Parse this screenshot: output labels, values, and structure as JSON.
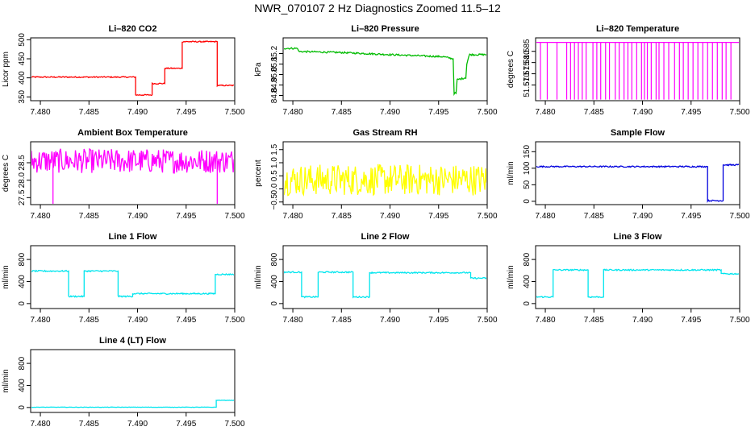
{
  "title": "NWR_070107  2 Hz Diagnostics Zoomed 11.5–12",
  "chart_data": [
    {
      "type": "line",
      "title": "Li–820 CO2",
      "xlabel": "",
      "ylabel": "Licor ppm",
      "color": "#ff0000",
      "xlim": [
        7.479,
        7.5
      ],
      "ylim": [
        340,
        505
      ],
      "x_ticks": [
        7.48,
        7.485,
        7.49,
        7.495,
        7.5
      ],
      "x_tick_labels": [
        "7.480",
        "7.485",
        "7.490",
        "7.495",
        "7.500"
      ],
      "y_ticks": [
        350,
        400,
        450,
        500
      ],
      "y_tick_labels": [
        "350",
        "400",
        "450",
        "500"
      ],
      "series": [
        {
          "x": [
            7.479,
            7.4898,
            7.4898,
            7.4915,
            7.4915,
            7.4928,
            7.4928,
            7.4946,
            7.4946,
            7.4982,
            7.4982,
            7.5
          ],
          "y": [
            402,
            402,
            355,
            355,
            385,
            385,
            425,
            425,
            495,
            495,
            380,
            380
          ],
          "noise": 1.5
        }
      ]
    },
    {
      "type": "line",
      "title": "Li–820 Pressure",
      "xlabel": "",
      "ylabel": "kPa",
      "color": "#00bb00",
      "xlim": [
        7.479,
        7.5
      ],
      "ylim": [
        84.75,
        85.35
      ],
      "x_ticks": [
        7.48,
        7.485,
        7.49,
        7.495,
        7.5
      ],
      "x_tick_labels": [
        "7.480",
        "7.485",
        "7.490",
        "7.495",
        "7.500"
      ],
      "y_ticks": [
        84.8,
        84.9,
        85.0,
        85.1,
        85.2
      ],
      "y_tick_labels": [
        "84.8",
        "84.9",
        "85.0",
        "85.1",
        "85.2"
      ],
      "series": [
        {
          "x": [
            7.479,
            7.4805,
            7.4806,
            7.485,
            7.49,
            7.4955,
            7.4965,
            7.4966,
            7.4968,
            7.4969,
            7.4978,
            7.4979,
            7.4981,
            7.4982,
            7.5
          ],
          "y": [
            85.25,
            85.25,
            85.22,
            85.21,
            85.19,
            85.17,
            85.15,
            84.82,
            84.82,
            84.95,
            84.97,
            85.1,
            85.17,
            85.19,
            85.19
          ],
          "noise": 0.008
        }
      ]
    },
    {
      "type": "line",
      "title": "Li–820 Temperature",
      "xlabel": "",
      "ylabel": "degrees C",
      "color": "#ff00ff",
      "xlim": [
        7.479,
        7.5
      ],
      "ylim": [
        51.563,
        51.591
      ],
      "x_ticks": [
        7.48,
        7.485,
        7.49,
        7.495,
        7.5
      ],
      "x_tick_labels": [
        "7.480",
        "7.485",
        "7.490",
        "7.495",
        "7.500"
      ],
      "y_ticks": [
        51.57,
        51.575,
        51.58,
        51.585
      ],
      "y_tick_labels": [
        "51.570",
        "51.575",
        "51.580",
        "51.585"
      ],
      "series": [
        {
          "x": [
            7.479,
            7.5
          ],
          "y": [
            51.589,
            51.589
          ],
          "drops": [
            7.4795,
            7.4802,
            7.4812,
            7.4822,
            7.4826,
            7.483,
            7.4834,
            7.4838,
            7.4842,
            7.4849,
            7.4853,
            7.4857,
            7.4862,
            7.4866,
            7.4872,
            7.4876,
            7.4881,
            7.4885,
            7.4889,
            7.4894,
            7.4899,
            7.4902,
            7.4905,
            7.4909,
            7.4914,
            7.4917,
            7.4922,
            7.4927,
            7.4933,
            7.4938,
            7.4942,
            7.4947,
            7.4952,
            7.4957,
            7.4962,
            7.4967,
            7.4972,
            7.4977,
            7.4982,
            7.4986,
            7.4991
          ],
          "drop_to": 51.5635
        }
      ]
    },
    {
      "type": "line",
      "title": "Ambient Box Temperature",
      "xlabel": "",
      "ylabel": "degrees C",
      "color": "#ff00ff",
      "xlim": [
        7.479,
        7.5
      ],
      "ylim": [
        27.3,
        29.1
      ],
      "x_ticks": [
        7.48,
        7.485,
        7.49,
        7.495,
        7.5
      ],
      "x_tick_labels": [
        "7.480",
        "7.485",
        "7.490",
        "7.495",
        "7.500"
      ],
      "y_ticks": [
        27.5,
        28.0,
        28.5
      ],
      "y_tick_labels": [
        "27.5",
        "28.0",
        "28.5"
      ],
      "series": [
        {
          "x": [
            7.479,
            7.5
          ],
          "y": [
            28.55,
            28.55
          ],
          "noise": 0.35,
          "spikes": [
            [
              7.4813,
              27.3
            ],
            [
              7.4982,
              27.3
            ]
          ]
        }
      ]
    },
    {
      "type": "line",
      "title": "Gas Stream RH",
      "xlabel": "",
      "ylabel": "percent",
      "color": "#ffff00",
      "xlim": [
        7.479,
        7.5
      ],
      "ylim": [
        -0.6,
        1.8
      ],
      "x_ticks": [
        7.48,
        7.485,
        7.49,
        7.495,
        7.5
      ],
      "x_tick_labels": [
        "7.480",
        "7.485",
        "7.490",
        "7.495",
        "7.500"
      ],
      "y_ticks": [
        -0.5,
        0.0,
        0.5,
        1.0,
        1.5
      ],
      "y_tick_labels": [
        "−0.5",
        "0.0",
        "0.5",
        "1.0",
        "1.5"
      ],
      "series": [
        {
          "x": [
            7.479,
            7.5
          ],
          "y": [
            0.35,
            0.35
          ],
          "noise": 0.6
        }
      ]
    },
    {
      "type": "line",
      "title": "Sample Flow",
      "xlabel": "",
      "ylabel": "ml/min",
      "color": "#0000dd",
      "xlim": [
        7.479,
        7.5
      ],
      "ylim": [
        -10,
        180
      ],
      "x_ticks": [
        7.48,
        7.485,
        7.49,
        7.495,
        7.5
      ],
      "x_tick_labels": [
        "7.480",
        "7.485",
        "7.490",
        "7.495",
        "7.500"
      ],
      "y_ticks": [
        0,
        50,
        100,
        150
      ],
      "y_tick_labels": [
        "0",
        "50",
        "100",
        "150"
      ],
      "series": [
        {
          "x": [
            7.479,
            7.4967,
            7.4967,
            7.4983,
            7.4983,
            7.5
          ],
          "y": [
            105,
            105,
            2,
            2,
            110,
            110
          ],
          "noise": 2
        }
      ]
    },
    {
      "type": "line",
      "title": "Line 1 Flow",
      "xlabel": "",
      "ylabel": "ml/min",
      "color": "#00e5ee",
      "xlim": [
        7.479,
        7.5
      ],
      "ylim": [
        -90,
        1050
      ],
      "x_ticks": [
        7.48,
        7.485,
        7.49,
        7.495,
        7.5
      ],
      "x_tick_labels": [
        "7.480",
        "7.485",
        "7.490",
        "7.495",
        "7.500"
      ],
      "y_ticks": [
        0,
        400,
        800
      ],
      "y_tick_labels": [
        "0",
        "400",
        "800"
      ],
      "series": [
        {
          "x": [
            7.479,
            7.4829,
            7.4829,
            7.4845,
            7.4845,
            7.488,
            7.488,
            7.4895,
            7.4895,
            7.498,
            7.498,
            7.5
          ],
          "y": [
            590,
            590,
            130,
            130,
            590,
            590,
            130,
            130,
            180,
            180,
            530,
            530
          ],
          "noise": 12
        }
      ]
    },
    {
      "type": "line",
      "title": "Line 2 Flow",
      "xlabel": "",
      "ylabel": "ml/min",
      "color": "#00e5ee",
      "xlim": [
        7.479,
        7.5
      ],
      "ylim": [
        -90,
        1050
      ],
      "x_ticks": [
        7.48,
        7.485,
        7.49,
        7.495,
        7.5
      ],
      "x_tick_labels": [
        "7.480",
        "7.485",
        "7.490",
        "7.495",
        "7.500"
      ],
      "y_ticks": [
        0,
        400,
        800
      ],
      "y_tick_labels": [
        "0",
        "400",
        "800"
      ],
      "series": [
        {
          "x": [
            7.479,
            7.4809,
            7.4809,
            7.4826,
            7.4826,
            7.4862,
            7.4862,
            7.4879,
            7.4879,
            7.4983,
            7.4983,
            7.5
          ],
          "y": [
            570,
            570,
            120,
            120,
            570,
            570,
            120,
            120,
            560,
            560,
            460,
            460
          ],
          "noise": 12
        }
      ]
    },
    {
      "type": "line",
      "title": "Line 3 Flow",
      "xlabel": "",
      "ylabel": "ml/min",
      "color": "#00e5ee",
      "xlim": [
        7.479,
        7.5
      ],
      "ylim": [
        -90,
        1050
      ],
      "x_ticks": [
        7.48,
        7.485,
        7.49,
        7.495,
        7.5
      ],
      "x_tick_labels": [
        "7.480",
        "7.485",
        "7.490",
        "7.495",
        "7.500"
      ],
      "y_ticks": [
        0,
        400,
        800
      ],
      "y_tick_labels": [
        "0",
        "400",
        "800"
      ],
      "series": [
        {
          "x": [
            7.479,
            7.4808,
            7.4808,
            7.4844,
            7.4844,
            7.486,
            7.486,
            7.4981,
            7.4981,
            7.5
          ],
          "y": [
            120,
            120,
            610,
            610,
            120,
            120,
            610,
            610,
            540,
            540
          ],
          "noise": 12
        }
      ]
    },
    {
      "type": "line",
      "title": "Line 4 (LT) Flow",
      "xlabel": "",
      "ylabel": "ml/min",
      "color": "#00e5ee",
      "xlim": [
        7.479,
        7.5
      ],
      "ylim": [
        -90,
        1050
      ],
      "x_ticks": [
        7.48,
        7.485,
        7.49,
        7.495,
        7.5
      ],
      "x_tick_labels": [
        "7.480",
        "7.485",
        "7.490",
        "7.495",
        "7.500"
      ],
      "y_ticks": [
        0,
        400,
        800
      ],
      "y_tick_labels": [
        "0",
        "400",
        "800"
      ],
      "series": [
        {
          "x": [
            7.479,
            7.4981,
            7.4981,
            7.5
          ],
          "y": [
            5,
            5,
            130,
            130
          ],
          "noise": 3
        }
      ]
    }
  ]
}
